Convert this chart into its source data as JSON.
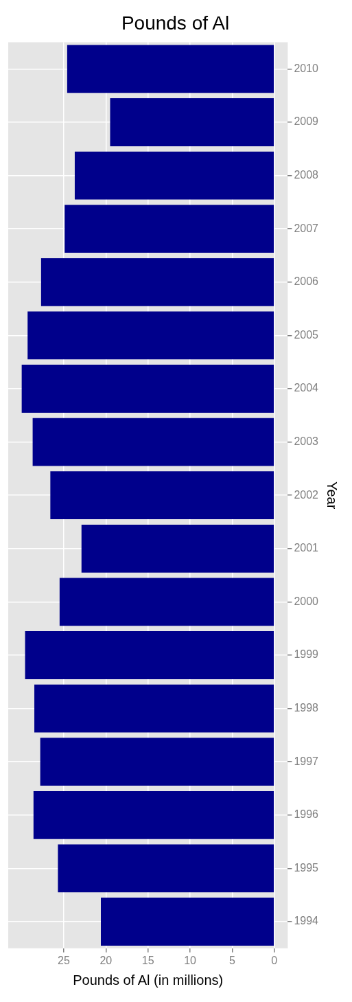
{
  "chart_data": {
    "type": "bar",
    "orientation": "horizontal",
    "title": "Pounds of Al",
    "xlabel": "Pounds of Al (in millions)",
    "ylabel": "Year",
    "categories": [
      "2010",
      "2009",
      "2008",
      "2007",
      "2006",
      "2005",
      "2004",
      "2003",
      "2002",
      "2001",
      "2000",
      "1999",
      "1998",
      "1997",
      "1996",
      "1995",
      "1994"
    ],
    "values": [
      24.6,
      19.5,
      23.7,
      24.9,
      27.7,
      29.3,
      30.0,
      28.7,
      26.6,
      22.9,
      25.5,
      29.6,
      28.5,
      27.8,
      28.6,
      25.7,
      20.6
    ],
    "color": "#00008b",
    "xlim": [
      31.6,
      -1.6
    ],
    "xticks": [
      25,
      20,
      15,
      10,
      5,
      0
    ],
    "grid": true
  }
}
